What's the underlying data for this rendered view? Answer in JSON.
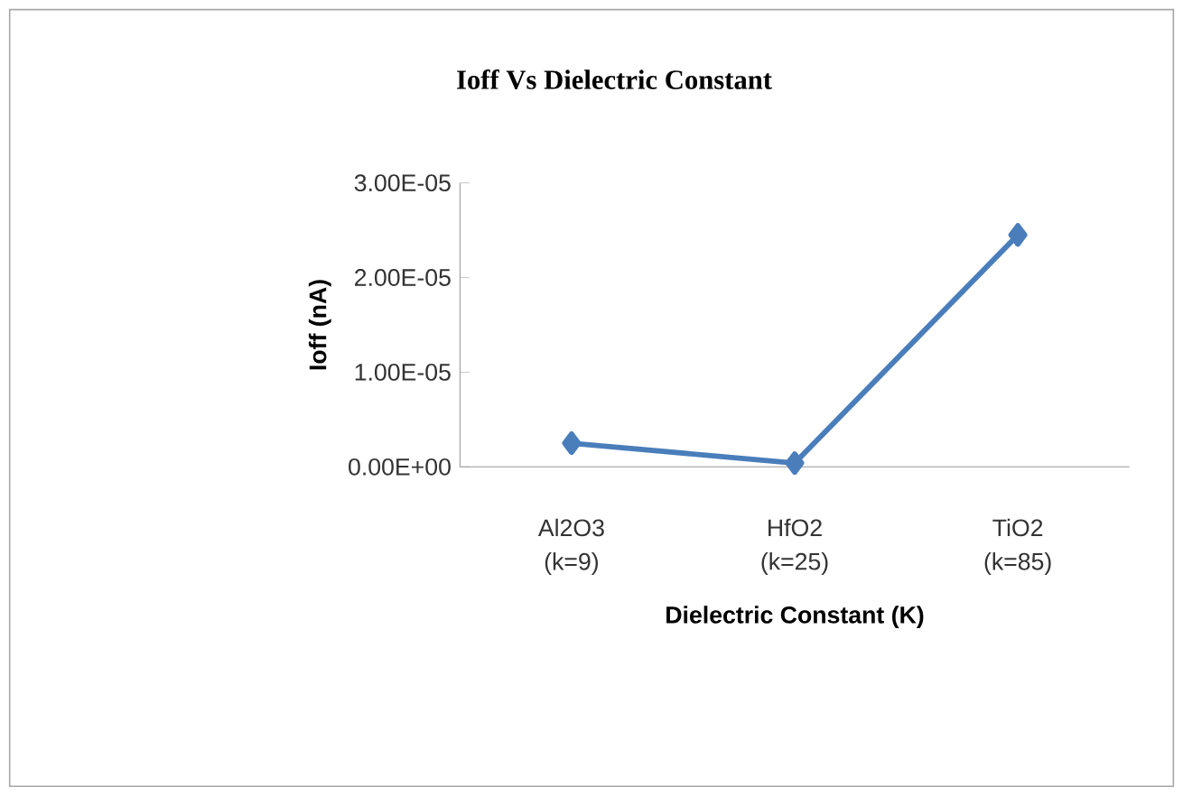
{
  "chart_data": {
    "type": "line",
    "title": "Ioff Vs Dielectric Constant",
    "xlabel": "Dielectric Constant  (K)",
    "ylabel": "Ioff (nA)",
    "categories": [
      "Al2O3 (k=9)",
      "HfO2 (k=25)",
      "TiO2 (k=85)"
    ],
    "series": [
      {
        "color": "#4a7ebb",
        "values": [
          2.5e-06,
          4e-07,
          2.45e-05
        ]
      }
    ],
    "ylim": [
      0,
      3e-05
    ],
    "yticks": [
      {
        "value": 0,
        "label": "0.00E+00"
      },
      {
        "value": 1e-05,
        "label": "1.00E-05"
      },
      {
        "value": 2e-05,
        "label": "2.00E-05"
      },
      {
        "value": 3e-05,
        "label": "3.00E-05"
      }
    ],
    "grid": false,
    "marker": "diamond",
    "line_style": "solid"
  }
}
